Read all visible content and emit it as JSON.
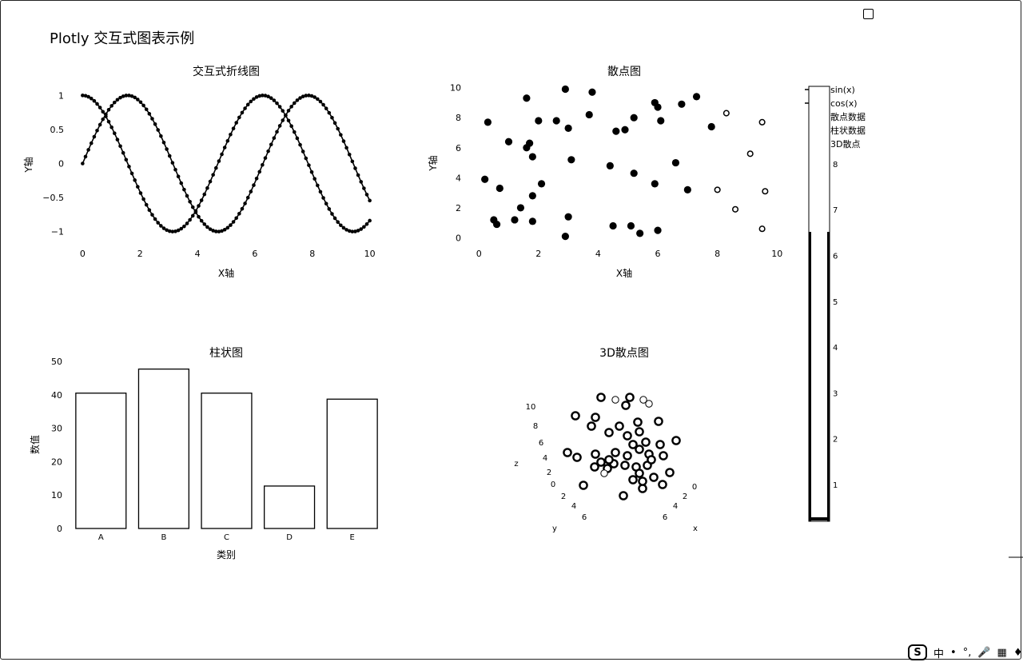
{
  "page": {
    "title": "Plotly 交互式图表示例"
  },
  "legend": {
    "items": [
      "sin(x)",
      "cos(x)",
      "散点数据",
      "柱状数据",
      "3D散点"
    ]
  },
  "colorbar": {
    "ticks": [
      "1",
      "2",
      "3",
      "4",
      "5",
      "6",
      "7",
      "8"
    ]
  },
  "taskbar": {
    "logo": "S",
    "items": [
      "中",
      "•",
      "°,",
      "🎤",
      "▦",
      "♦"
    ]
  },
  "chart_data": [
    {
      "type": "line",
      "title": "交互式折线图",
      "xlabel": "X轴",
      "ylabel": "Y轴",
      "xlim": [
        -0.4,
        10.4
      ],
      "ylim": [
        -1.18,
        1.18
      ],
      "xticks": [
        0,
        2,
        4,
        6,
        8,
        10
      ],
      "yticks": [
        1,
        0.5,
        0,
        -0.5,
        -1
      ],
      "ytick_labels": [
        "1",
        "0.5",
        "0",
        "−0.5",
        "−1"
      ],
      "series": [
        {
          "name": "sin(x)",
          "function": "sin",
          "x_range": [
            0,
            10
          ],
          "points": 100
        },
        {
          "name": "cos(x)",
          "function": "cos",
          "x_range": [
            0,
            10
          ],
          "points": 100
        }
      ]
    },
    {
      "type": "scatter",
      "title": "散点图",
      "xlabel": "X轴",
      "ylabel": "Y轴",
      "xlim": [
        -0.3,
        10.1
      ],
      "ylim": [
        -0.4,
        10.3
      ],
      "xticks": [
        0,
        2,
        4,
        6,
        8,
        10
      ],
      "yticks": [
        0,
        2,
        4,
        6,
        8,
        10
      ],
      "points": [
        [
          0.3,
          7.7
        ],
        [
          0.2,
          3.9
        ],
        [
          0.5,
          1.2
        ],
        [
          0.6,
          0.9
        ],
        [
          0.7,
          3.3
        ],
        [
          1.0,
          6.4
        ],
        [
          1.2,
          1.2
        ],
        [
          1.4,
          2.0
        ],
        [
          1.6,
          9.3
        ],
        [
          1.6,
          6.0
        ],
        [
          1.7,
          6.3
        ],
        [
          1.8,
          5.4
        ],
        [
          1.8,
          2.8
        ],
        [
          1.8,
          1.1
        ],
        [
          2.0,
          7.8
        ],
        [
          2.1,
          3.6
        ],
        [
          2.6,
          7.8
        ],
        [
          2.9,
          9.9
        ],
        [
          3.0,
          7.3
        ],
        [
          3.1,
          5.2
        ],
        [
          3.0,
          1.4
        ],
        [
          2.9,
          0.1
        ],
        [
          3.7,
          8.2
        ],
        [
          3.8,
          9.7
        ],
        [
          4.4,
          4.8
        ],
        [
          4.5,
          0.8
        ],
        [
          4.6,
          7.1
        ],
        [
          4.9,
          7.2
        ],
        [
          5.2,
          8.0
        ],
        [
          5.2,
          4.3
        ],
        [
          5.1,
          0.8
        ],
        [
          5.4,
          0.3
        ],
        [
          5.9,
          9.0
        ],
        [
          6.0,
          8.7
        ],
        [
          6.1,
          7.8
        ],
        [
          5.9,
          3.6
        ],
        [
          6.0,
          0.5
        ],
        [
          6.6,
          5.0
        ],
        [
          6.8,
          8.9
        ],
        [
          7.0,
          3.2
        ],
        [
          7.3,
          9.4
        ],
        [
          7.8,
          7.4
        ]
      ],
      "open_points": [
        [
          8.3,
          8.3
        ],
        [
          8.0,
          3.2
        ],
        [
          8.6,
          1.9
        ],
        [
          9.1,
          5.6
        ],
        [
          9.5,
          7.7
        ],
        [
          9.5,
          0.6
        ],
        [
          9.6,
          3.1
        ]
      ]
    },
    {
      "type": "bar",
      "title": "柱状图",
      "xlabel": "类别",
      "ylabel": "数值",
      "ylim": [
        0,
        50
      ],
      "yticks": [
        0,
        10,
        20,
        30,
        40,
        50
      ],
      "categories": [
        "A",
        "B",
        "C",
        "D",
        "E"
      ],
      "values": [
        40.5,
        47.7,
        40.5,
        12.7,
        38.7
      ]
    },
    {
      "type": "scatter3d",
      "title": "3D散点图",
      "z_axis_label": "z",
      "y_axis_label": "y",
      "x_axis_label": "x",
      "z_ticks": [
        "10",
        "8",
        "6",
        "4",
        "2",
        "0"
      ],
      "y_ticks": [
        "2",
        "4",
        "6"
      ],
      "x_ticks": [
        "0",
        "2",
        "4",
        "6"
      ],
      "points": [
        [
          720,
          520
        ],
        [
          745,
          522
        ],
        [
          740,
          533
        ],
        [
          752,
          497
        ],
        [
          788,
          497
        ],
        [
          783,
          507
        ],
        [
          775,
          533
        ],
        [
          798,
          528
        ],
        [
          824,
          527
        ],
        [
          762,
          541
        ],
        [
          785,
          545
        ],
        [
          800,
          540
        ],
        [
          792,
          556
        ],
        [
          808,
          553
        ],
        [
          826,
          556
        ],
        [
          846,
          551
        ],
        [
          710,
          566
        ],
        [
          722,
          572
        ],
        [
          745,
          568
        ],
        [
          770,
          566
        ],
        [
          785,
          570
        ],
        [
          800,
          562
        ],
        [
          812,
          568
        ],
        [
          830,
          570
        ],
        [
          752,
          578
        ],
        [
          760,
          586
        ],
        [
          744,
          584
        ],
        [
          768,
          580
        ],
        [
          782,
          582
        ],
        [
          796,
          584
        ],
        [
          810,
          582
        ],
        [
          838,
          591
        ],
        [
          800,
          592
        ],
        [
          818,
          597
        ],
        [
          730,
          607
        ],
        [
          780,
          620
        ],
        [
          804,
          611
        ],
        [
          829,
          606
        ],
        [
          804,
          602
        ],
        [
          792,
          600
        ],
        [
          762,
          575
        ],
        [
          815,
          575
        ]
      ],
      "faint_points": [
        [
          812,
          505
        ],
        [
          805,
          500
        ],
        [
          770,
          500
        ],
        [
          756,
          592
        ]
      ]
    }
  ]
}
